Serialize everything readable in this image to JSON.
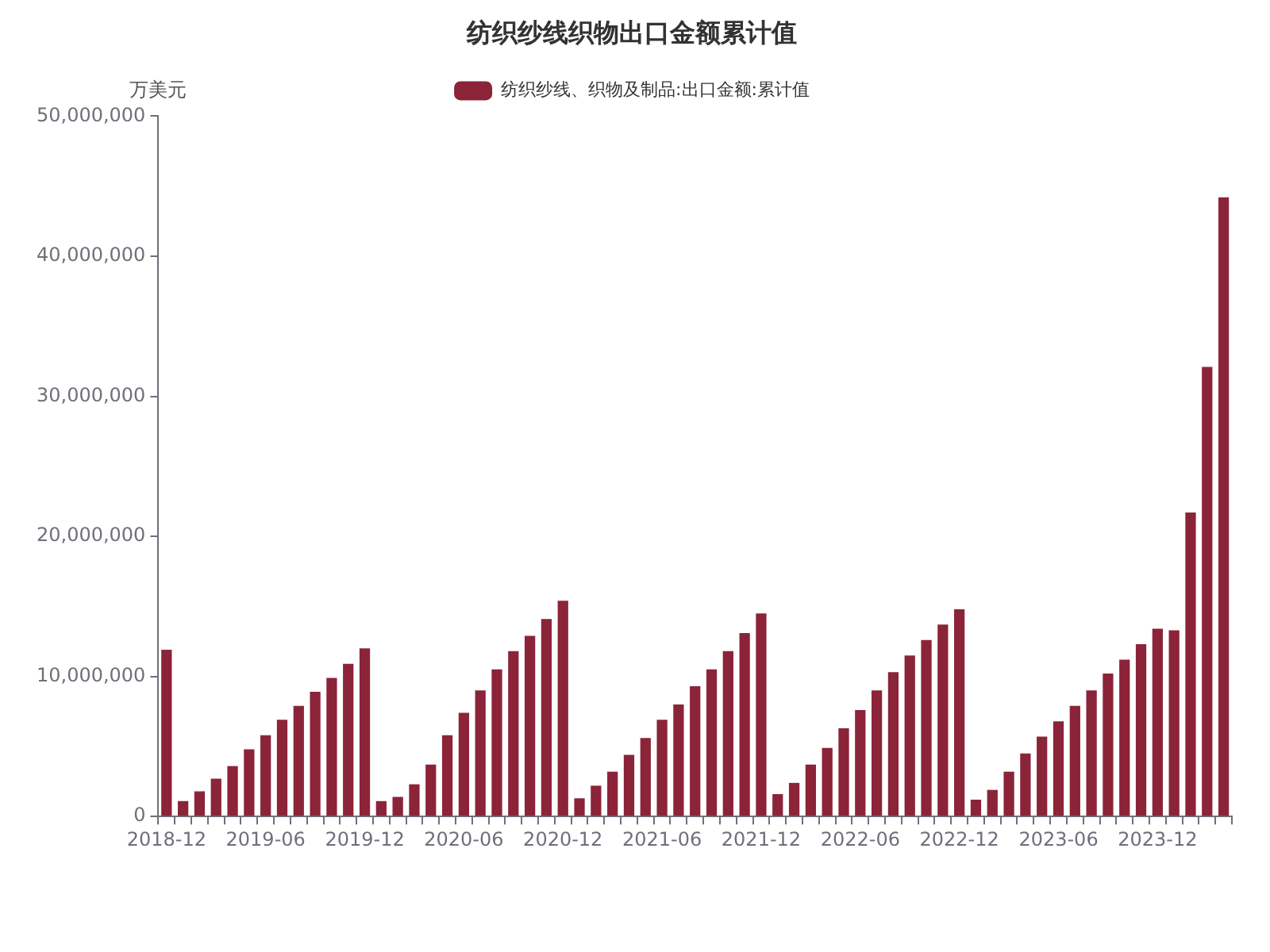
{
  "chart_data": {
    "type": "bar",
    "title": "纺织纱线织物出口金额累计值",
    "ylabel": "万美元",
    "legend": "top",
    "categories": [
      "2018-12",
      null,
      null,
      null,
      null,
      null,
      "2019-06",
      null,
      null,
      null,
      null,
      null,
      "2019-12",
      null,
      null,
      null,
      null,
      null,
      "2020-06",
      null,
      null,
      null,
      null,
      null,
      "2020-12",
      null,
      null,
      null,
      null,
      null,
      "2021-06",
      null,
      null,
      null,
      null,
      null,
      "2021-12",
      null,
      null,
      null,
      null,
      null,
      "2022-06",
      null,
      null,
      null,
      null,
      null,
      "2022-12",
      null,
      null,
      null,
      null,
      null,
      "2023-06",
      null,
      null,
      null,
      null,
      null,
      "2023-12",
      null,
      null,
      null,
      null
    ],
    "series": [
      {
        "name": "纺织纱线、织物及制品:出口金额:累计值",
        "color": "#8b2439",
        "values": [
          11900000,
          1100000,
          1800000,
          2700000,
          3600000,
          4800000,
          5800000,
          6900000,
          7900000,
          8900000,
          9900000,
          10900000,
          12000000,
          1100000,
          1400000,
          2300000,
          3700000,
          5800000,
          7400000,
          9000000,
          10500000,
          11800000,
          12900000,
          14100000,
          15400000,
          1300000,
          2200000,
          3200000,
          4400000,
          5600000,
          6900000,
          8000000,
          9300000,
          10500000,
          11800000,
          13100000,
          14500000,
          1600000,
          2400000,
          3700000,
          4900000,
          6300000,
          7600000,
          9000000,
          10300000,
          11500000,
          12600000,
          13700000,
          14800000,
          1200000,
          1900000,
          3200000,
          4500000,
          5700000,
          6800000,
          7900000,
          9000000,
          10200000,
          11200000,
          12300000,
          13400000,
          13300000,
          21700000,
          32100000,
          44200000
        ]
      }
    ],
    "ylim": [
      0,
      50000000
    ],
    "yticks": [
      0,
      {
        "value": 10000000,
        "label": "10,000,000"
      },
      {
        "value": 20000000,
        "label": "20,000,000"
      },
      {
        "value": 30000000,
        "label": "30,000,000"
      },
      {
        "value": 40000000,
        "label": "40,000,000"
      },
      {
        "value": 50000000,
        "label": "50,000,000"
      }
    ],
    "grid": false
  }
}
